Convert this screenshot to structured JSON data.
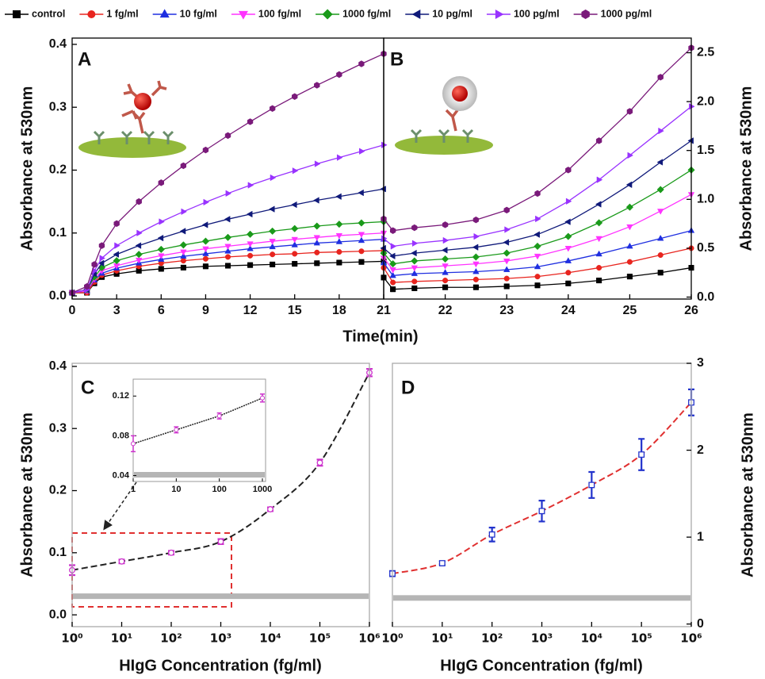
{
  "chart_data": [
    {
      "type": "line",
      "label": "A",
      "xlabel": "Time(min)",
      "ylabel": "Absorbance at 530nm",
      "xlim": [
        0,
        21
      ],
      "xticks": [
        0,
        3,
        6,
        9,
        12,
        15,
        18,
        21
      ],
      "ylim": [
        -0.005,
        0.41
      ],
      "yticks": [
        {
          "value": 0,
          "label": "0.0"
        },
        0.1,
        0.2,
        0.3,
        0.4
      ],
      "x": [
        0,
        1,
        1.5,
        2,
        3,
        4.5,
        6,
        7.5,
        9,
        10.5,
        12,
        13.5,
        15,
        16.5,
        18,
        19.5,
        21
      ],
      "series": [
        {
          "name": "control",
          "color": "#000000",
          "marker": "square",
          "values": [
            0.005,
            0.005,
            0.02,
            0.03,
            0.035,
            0.04,
            0.043,
            0.045,
            0.047,
            0.048,
            0.049,
            0.05,
            0.051,
            0.052,
            0.053,
            0.054,
            0.055
          ]
        },
        {
          "name": "1 fg/ml",
          "color": "#e8251f",
          "marker": "circle",
          "values": [
            0.005,
            0.005,
            0.022,
            0.033,
            0.04,
            0.047,
            0.052,
            0.056,
            0.059,
            0.062,
            0.064,
            0.066,
            0.067,
            0.069,
            0.07,
            0.071,
            0.072
          ]
        },
        {
          "name": "10 fg/ml",
          "color": "#1f2fe0",
          "marker": "triangle-up",
          "values": [
            0.005,
            0.008,
            0.025,
            0.036,
            0.044,
            0.052,
            0.058,
            0.063,
            0.067,
            0.071,
            0.075,
            0.078,
            0.081,
            0.084,
            0.086,
            0.088,
            0.09
          ]
        },
        {
          "name": "100 fg/ml",
          "color": "#ff33ff",
          "marker": "triangle-down",
          "values": [
            0.005,
            0.008,
            0.027,
            0.04,
            0.048,
            0.057,
            0.064,
            0.07,
            0.075,
            0.079,
            0.083,
            0.087,
            0.09,
            0.093,
            0.096,
            0.098,
            0.1
          ]
        },
        {
          "name": "1000 fg/ml",
          "color": "#1a9a1a",
          "marker": "diamond",
          "values": [
            0.005,
            0.01,
            0.03,
            0.045,
            0.056,
            0.066,
            0.074,
            0.081,
            0.087,
            0.093,
            0.098,
            0.103,
            0.107,
            0.111,
            0.114,
            0.116,
            0.118
          ]
        },
        {
          "name": "10 pg/ml",
          "color": "#101a7a",
          "marker": "triangle-left",
          "values": [
            0.005,
            0.01,
            0.035,
            0.052,
            0.066,
            0.08,
            0.092,
            0.103,
            0.113,
            0.122,
            0.13,
            0.138,
            0.145,
            0.152,
            0.158,
            0.164,
            0.17
          ]
        },
        {
          "name": "100 pg/ml",
          "color": "#9933ff",
          "marker": "triangle-right",
          "values": [
            0.005,
            0.01,
            0.04,
            0.06,
            0.08,
            0.1,
            0.118,
            0.134,
            0.149,
            0.163,
            0.176,
            0.188,
            0.199,
            0.21,
            0.22,
            0.23,
            0.24
          ]
        },
        {
          "name": "1000 pg/ml",
          "color": "#7a1a7a",
          "marker": "hexagon",
          "values": [
            0.005,
            0.015,
            0.05,
            0.08,
            0.115,
            0.15,
            0.18,
            0.207,
            0.232,
            0.255,
            0.277,
            0.298,
            0.317,
            0.335,
            0.352,
            0.369,
            0.385
          ]
        }
      ]
    },
    {
      "type": "line",
      "label": "B",
      "ylabel": "Absorbance at 530nm",
      "xlim": [
        21,
        26
      ],
      "xticks": [
        22,
        23,
        24,
        25,
        26
      ],
      "ylim": [
        -0.02,
        2.65
      ],
      "yticks": [
        {
          "value": 0,
          "label": "0.0"
        },
        0.5,
        {
          "value": 1,
          "label": "1.0"
        },
        1.5,
        {
          "value": 2,
          "label": "2.0"
        },
        2.5
      ],
      "x": [
        21,
        21.15,
        21.5,
        22,
        22.5,
        23,
        23.5,
        24,
        24.5,
        25,
        25.5,
        26
      ],
      "series": [
        {
          "color": "#000000",
          "marker": "square",
          "values": [
            0.2,
            0.08,
            0.09,
            0.1,
            0.1,
            0.11,
            0.12,
            0.14,
            0.17,
            0.21,
            0.25,
            0.3
          ]
        },
        {
          "color": "#e8251f",
          "marker": "circle",
          "values": [
            0.3,
            0.15,
            0.16,
            0.17,
            0.18,
            0.19,
            0.21,
            0.25,
            0.3,
            0.36,
            0.43,
            0.5
          ]
        },
        {
          "color": "#1f2fe0",
          "marker": "triangle-up",
          "values": [
            0.35,
            0.22,
            0.24,
            0.25,
            0.26,
            0.28,
            0.31,
            0.37,
            0.44,
            0.52,
            0.6,
            0.68
          ]
        },
        {
          "color": "#ff33ff",
          "marker": "triangle-down",
          "values": [
            0.4,
            0.28,
            0.3,
            0.32,
            0.34,
            0.37,
            0.42,
            0.5,
            0.6,
            0.72,
            0.88,
            1.05
          ]
        },
        {
          "color": "#1a9a1a",
          "marker": "diamond",
          "values": [
            0.45,
            0.34,
            0.37,
            0.39,
            0.41,
            0.45,
            0.52,
            0.62,
            0.76,
            0.92,
            1.1,
            1.3
          ]
        },
        {
          "color": "#101a7a",
          "marker": "triangle-left",
          "values": [
            0.5,
            0.42,
            0.45,
            0.48,
            0.51,
            0.56,
            0.64,
            0.77,
            0.95,
            1.15,
            1.38,
            1.6
          ]
        },
        {
          "color": "#9933ff",
          "marker": "triangle-right",
          "values": [
            0.6,
            0.52,
            0.55,
            0.58,
            0.62,
            0.69,
            0.8,
            0.98,
            1.2,
            1.45,
            1.7,
            1.95
          ]
        },
        {
          "color": "#7a1a7a",
          "marker": "hexagon",
          "values": [
            0.8,
            0.68,
            0.71,
            0.74,
            0.79,
            0.89,
            1.06,
            1.3,
            1.6,
            1.9,
            2.25,
            2.55
          ]
        }
      ]
    },
    {
      "type": "scatter",
      "label": "C",
      "xlabel": "HIgG Concentration (fg/ml)",
      "ylabel": "Absorbance at 530nm",
      "log_x": true,
      "xlim": [
        1,
        1000000
      ],
      "xticks": [
        {
          "value": 1,
          "label": "10⁰"
        },
        {
          "value": 10,
          "label": "10¹"
        },
        {
          "value": 100,
          "label": "10²"
        },
        {
          "value": 1000,
          "label": "10³"
        },
        {
          "value": 10000,
          "label": "10⁴"
        },
        {
          "value": 100000,
          "label": "10⁵"
        },
        {
          "value": 1000000,
          "label": "10⁶"
        }
      ],
      "ylim": [
        -0.019,
        0.405
      ],
      "yticks": [
        {
          "value": 0,
          "label": "0.0"
        },
        0.1,
        0.2,
        0.3,
        0.4
      ],
      "x": [
        1,
        10,
        100,
        1000,
        10000,
        100000,
        1000000
      ],
      "values": [
        0.072,
        0.086,
        0.1,
        0.118,
        0.17,
        0.245,
        0.39
      ],
      "errors": [
        0.008,
        0.003,
        0.003,
        0.004,
        0.003,
        0.005,
        0.006
      ],
      "color": "#cc33cc",
      "marker": "circle",
      "fit_color": "#222222",
      "baseline": 0.03,
      "inset": {
        "log_x": true,
        "xlim": [
          1,
          1000
        ],
        "xticks": [
          1,
          10,
          100,
          1000
        ],
        "ylim": [
          0.034,
          0.137
        ],
        "yticks": [
          0.04,
          0.08,
          0.12
        ]
      }
    },
    {
      "type": "scatter",
      "label": "D",
      "xlabel": "HIgG Concentration (fg/ml)",
      "ylabel": "Absorbance at 530nm",
      "log_x": true,
      "xlim": [
        1,
        1000000
      ],
      "xticks": [
        {
          "value": 1,
          "label": "10⁰"
        },
        {
          "value": 10,
          "label": "10¹"
        },
        {
          "value": 100,
          "label": "10²"
        },
        {
          "value": 1000,
          "label": "10³"
        },
        {
          "value": 10000,
          "label": "10⁴"
        },
        {
          "value": 100000,
          "label": "10⁵"
        },
        {
          "value": 1000000,
          "label": "10⁶"
        }
      ],
      "ylim": [
        -0.03,
        3
      ],
      "yticks": [
        0,
        1,
        2,
        3
      ],
      "x": [
        1,
        10,
        100,
        1000,
        10000,
        100000,
        1000000
      ],
      "values": [
        0.58,
        0.7,
        1.03,
        1.3,
        1.6,
        1.95,
        2.55
      ],
      "errors": [
        0.03,
        0.02,
        0.08,
        0.12,
        0.15,
        0.18,
        0.15
      ],
      "color": "#2233cc",
      "marker": "square",
      "fit_color": "#e03030",
      "baseline": 0.3
    }
  ]
}
